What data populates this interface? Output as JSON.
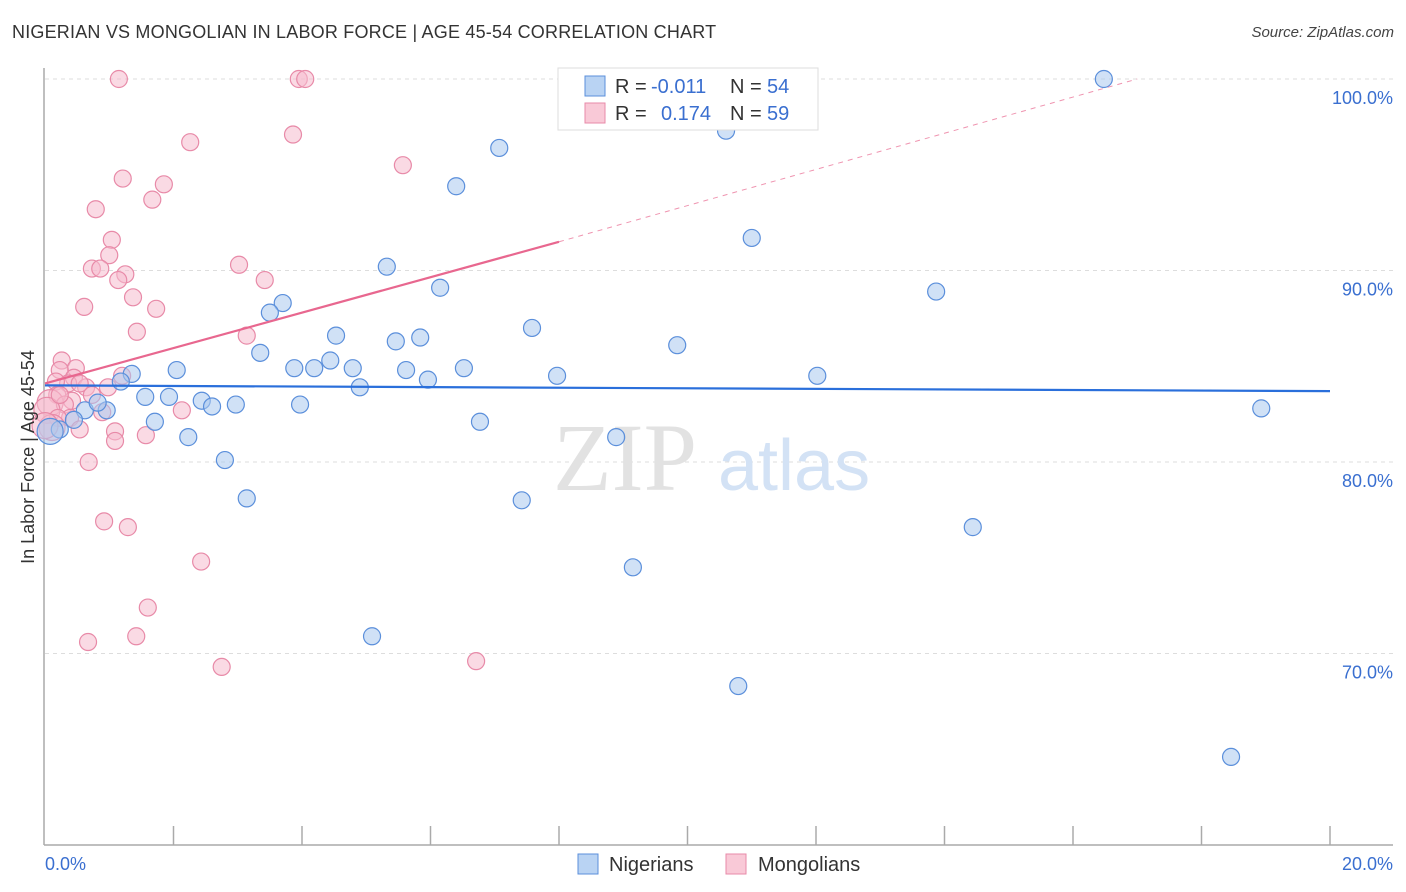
{
  "header": {
    "title": "NIGERIAN VS MONGOLIAN IN LABOR FORCE | AGE 45-54 CORRELATION CHART",
    "source": "Source: ZipAtlas.com"
  },
  "colors": {
    "nigerians_fill": "#a9c8ef",
    "nigerians_stroke": "#5b8fdb",
    "nigerians_line": "#2a6fdb",
    "mongolians_fill": "#f5bccd",
    "mongolians_stroke": "#e88aa8",
    "mongolians_line": "#e8678f",
    "tick_label": "#3a6fd0"
  },
  "watermark": {
    "zip": "ZIP",
    "atlas": "atlas"
  },
  "chart_data": {
    "type": "scatter",
    "title": "NIGERIAN VS MONGOLIAN IN LABOR FORCE | AGE 45-54 CORRELATION CHART",
    "xlabel": "",
    "ylabel": "In Labor Force | Age 45-54",
    "xlim": [
      0,
      20
    ],
    "ylim": [
      60,
      100.5
    ],
    "x_tick_labels": [
      "0.0%",
      "20.0%"
    ],
    "y_ticks": [
      {
        "value": 100,
        "label": "100.0%"
      },
      {
        "value": 90,
        "label": "90.0%"
      },
      {
        "value": 80,
        "label": "80.0%"
      },
      {
        "value": 70,
        "label": "70.0%"
      }
    ],
    "grid": true,
    "legend_position": "top-center",
    "stats_legend": [
      {
        "r_label": "R =",
        "r": "-0.011",
        "n_label": "N =",
        "n": "54"
      },
      {
        "r_label": "R =",
        "r": "0.174",
        "n_label": "N =",
        "n": "59"
      }
    ],
    "series": [
      {
        "name": "Nigerians",
        "trend": {
          "x": [
            0,
            20
          ],
          "y": [
            84.0,
            83.7
          ],
          "dashed_to": null
        },
        "points": [
          [
            16.48,
            100
          ],
          [
            7.07,
            96.4
          ],
          [
            10.6,
            97.3
          ],
          [
            6.4,
            94.4
          ],
          [
            11.0,
            91.7
          ],
          [
            5.32,
            90.2
          ],
          [
            6.15,
            89.1
          ],
          [
            13.87,
            88.9
          ],
          [
            3.7,
            88.3
          ],
          [
            3.5,
            87.8
          ],
          [
            4.53,
            86.6
          ],
          [
            5.84,
            86.5
          ],
          [
            5.46,
            86.3
          ],
          [
            7.58,
            87.0
          ],
          [
            9.84,
            86.1
          ],
          [
            3.35,
            85.7
          ],
          [
            4.44,
            85.3
          ],
          [
            3.88,
            84.9
          ],
          [
            4.19,
            84.9
          ],
          [
            4.79,
            84.9
          ],
          [
            5.62,
            84.8
          ],
          [
            6.52,
            84.9
          ],
          [
            5.96,
            84.3
          ],
          [
            4.9,
            83.9
          ],
          [
            7.97,
            84.5
          ],
          [
            12.02,
            84.5
          ],
          [
            2.05,
            84.8
          ],
          [
            1.35,
            84.6
          ],
          [
            1.18,
            84.2
          ],
          [
            1.56,
            83.4
          ],
          [
            1.93,
            83.4
          ],
          [
            2.44,
            83.2
          ],
          [
            2.6,
            82.9
          ],
          [
            2.97,
            83.0
          ],
          [
            3.97,
            83.0
          ],
          [
            18.93,
            82.8
          ],
          [
            0.62,
            82.7
          ],
          [
            0.96,
            82.7
          ],
          [
            0.82,
            83.1
          ],
          [
            1.71,
            82.1
          ],
          [
            6.77,
            82.1
          ],
          [
            2.23,
            81.3
          ],
          [
            8.89,
            81.3
          ],
          [
            0.23,
            81.7
          ],
          [
            0.08,
            81.6
          ],
          [
            0.45,
            82.2
          ],
          [
            2.8,
            80.1
          ],
          [
            3.14,
            78.1
          ],
          [
            7.42,
            78.0
          ],
          [
            14.44,
            76.6
          ],
          [
            9.15,
            74.5
          ],
          [
            5.09,
            70.9
          ],
          [
            10.79,
            68.3
          ],
          [
            18.46,
            64.6
          ]
        ]
      },
      {
        "name": "Mongolians",
        "trend": {
          "x": [
            0,
            8.0
          ],
          "y": [
            84.1,
            91.5
          ],
          "dashed_to": [
            17.0,
            100
          ]
        },
        "points": [
          [
            1.15,
            100
          ],
          [
            3.95,
            100
          ],
          [
            4.05,
            100
          ],
          [
            3.86,
            97.1
          ],
          [
            2.26,
            96.7
          ],
          [
            5.57,
            95.5
          ],
          [
            1.21,
            94.8
          ],
          [
            1.85,
            94.5
          ],
          [
            1.67,
            93.7
          ],
          [
            0.79,
            93.2
          ],
          [
            1.04,
            91.6
          ],
          [
            1.0,
            90.8
          ],
          [
            0.73,
            90.1
          ],
          [
            0.86,
            90.1
          ],
          [
            1.25,
            89.8
          ],
          [
            1.14,
            89.5
          ],
          [
            3.02,
            90.3
          ],
          [
            3.42,
            89.5
          ],
          [
            0.61,
            88.1
          ],
          [
            1.37,
            88.6
          ],
          [
            1.73,
            88.0
          ],
          [
            1.43,
            86.8
          ],
          [
            3.14,
            86.6
          ],
          [
            0.26,
            85.3
          ],
          [
            0.48,
            84.9
          ],
          [
            0.23,
            84.8
          ],
          [
            0.45,
            84.4
          ],
          [
            0.36,
            84.1
          ],
          [
            0.17,
            84.2
          ],
          [
            1.2,
            84.5
          ],
          [
            0.64,
            83.9
          ],
          [
            0.98,
            83.9
          ],
          [
            0.19,
            83.5
          ],
          [
            0.08,
            83.1
          ],
          [
            0.42,
            83.2
          ],
          [
            0.31,
            83.0
          ],
          [
            0.03,
            82.7
          ],
          [
            0.89,
            82.6
          ],
          [
            2.13,
            82.7
          ],
          [
            0.39,
            82.3
          ],
          [
            0.2,
            82.3
          ],
          [
            0.54,
            81.7
          ],
          [
            1.09,
            81.6
          ],
          [
            1.57,
            81.4
          ],
          [
            1.09,
            81.1
          ],
          [
            0.11,
            81.8
          ],
          [
            0.68,
            80.0
          ],
          [
            0.92,
            76.9
          ],
          [
            1.29,
            76.6
          ],
          [
            2.43,
            74.8
          ],
          [
            1.6,
            72.4
          ],
          [
            1.42,
            70.9
          ],
          [
            0.67,
            70.6
          ],
          [
            2.75,
            69.3
          ],
          [
            6.71,
            69.6
          ],
          [
            0.23,
            83.5
          ],
          [
            0.73,
            83.5
          ],
          [
            0.54,
            84.1
          ],
          [
            0.0,
            81.9
          ]
        ]
      }
    ]
  }
}
